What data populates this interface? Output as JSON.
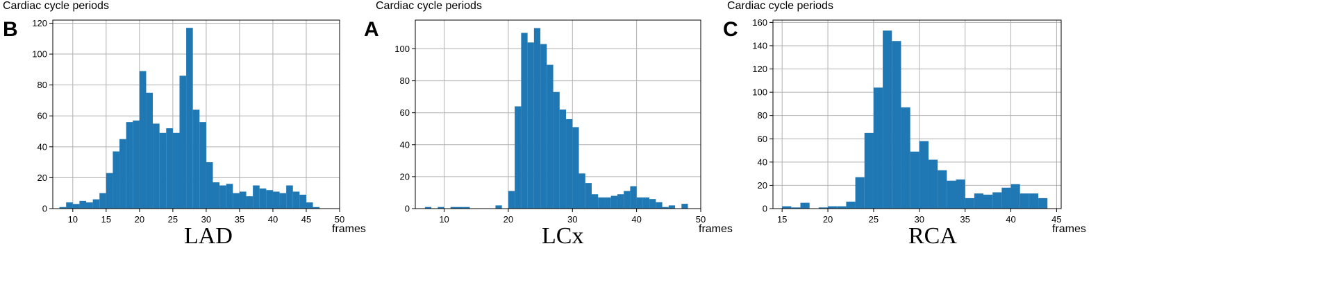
{
  "colors": {
    "bar": "#1f77b4",
    "grid": "#b0b0b0",
    "axis": "#000000"
  },
  "chart_data": [
    {
      "type": "bar",
      "panel_letter": "B",
      "title": "Cardiac cycle periods",
      "xlabel": "frames",
      "series_name": "LAD",
      "xlim": [
        7,
        50
      ],
      "ylim": [
        0,
        122
      ],
      "xticks": [
        10,
        15,
        20,
        25,
        30,
        35,
        40,
        45,
        50
      ],
      "yticks": [
        0,
        20,
        40,
        60,
        80,
        100,
        120
      ],
      "grid": true,
      "bins": [
        {
          "x0": 8,
          "x1": 9,
          "y": 1
        },
        {
          "x0": 9,
          "x1": 10,
          "y": 4
        },
        {
          "x0": 10,
          "x1": 11,
          "y": 3
        },
        {
          "x0": 11,
          "x1": 12,
          "y": 5
        },
        {
          "x0": 12,
          "x1": 13,
          "y": 4
        },
        {
          "x0": 13,
          "x1": 14,
          "y": 6
        },
        {
          "x0": 14,
          "x1": 15,
          "y": 10
        },
        {
          "x0": 15,
          "x1": 16,
          "y": 23
        },
        {
          "x0": 16,
          "x1": 17,
          "y": 37
        },
        {
          "x0": 17,
          "x1": 18,
          "y": 45
        },
        {
          "x0": 18,
          "x1": 19,
          "y": 56
        },
        {
          "x0": 19,
          "x1": 20,
          "y": 57
        },
        {
          "x0": 20,
          "x1": 21,
          "y": 89
        },
        {
          "x0": 21,
          "x1": 22,
          "y": 75
        },
        {
          "x0": 22,
          "x1": 23,
          "y": 55
        },
        {
          "x0": 23,
          "x1": 24,
          "y": 49
        },
        {
          "x0": 24,
          "x1": 25,
          "y": 52
        },
        {
          "x0": 25,
          "x1": 26,
          "y": 49
        },
        {
          "x0": 26,
          "x1": 27,
          "y": 86
        },
        {
          "x0": 27,
          "x1": 28,
          "y": 117
        },
        {
          "x0": 28,
          "x1": 29,
          "y": 64
        },
        {
          "x0": 29,
          "x1": 30,
          "y": 56
        },
        {
          "x0": 30,
          "x1": 31,
          "y": 30
        },
        {
          "x0": 31,
          "x1": 32,
          "y": 17
        },
        {
          "x0": 32,
          "x1": 33,
          "y": 15
        },
        {
          "x0": 33,
          "x1": 34,
          "y": 16
        },
        {
          "x0": 34,
          "x1": 35,
          "y": 10
        },
        {
          "x0": 35,
          "x1": 36,
          "y": 11
        },
        {
          "x0": 36,
          "x1": 37,
          "y": 8
        },
        {
          "x0": 37,
          "x1": 38,
          "y": 15
        },
        {
          "x0": 38,
          "x1": 39,
          "y": 13
        },
        {
          "x0": 39,
          "x1": 40,
          "y": 12
        },
        {
          "x0": 40,
          "x1": 41,
          "y": 11
        },
        {
          "x0": 41,
          "x1": 42,
          "y": 10
        },
        {
          "x0": 42,
          "x1": 43,
          "y": 15
        },
        {
          "x0": 43,
          "x1": 44,
          "y": 11
        },
        {
          "x0": 44,
          "x1": 45,
          "y": 9
        },
        {
          "x0": 45,
          "x1": 46,
          "y": 4
        },
        {
          "x0": 46,
          "x1": 47,
          "y": 1
        }
      ]
    },
    {
      "type": "bar",
      "panel_letter": "A",
      "title": "Cardiac cycle periods",
      "xlabel": "frames",
      "series_name": "LCx",
      "xlim": [
        5.5,
        50
      ],
      "ylim": [
        0,
        118
      ],
      "xticks": [
        10,
        20,
        30,
        40,
        50
      ],
      "yticks": [
        0,
        20,
        40,
        60,
        80,
        100
      ],
      "grid": true,
      "bins": [
        {
          "x0": 7,
          "x1": 8,
          "y": 1
        },
        {
          "x0": 9,
          "x1": 10,
          "y": 1
        },
        {
          "x0": 11,
          "x1": 12,
          "y": 1
        },
        {
          "x0": 12,
          "x1": 13,
          "y": 1
        },
        {
          "x0": 13,
          "x1": 14,
          "y": 1
        },
        {
          "x0": 18,
          "x1": 19,
          "y": 2
        },
        {
          "x0": 20,
          "x1": 21,
          "y": 11
        },
        {
          "x0": 21,
          "x1": 22,
          "y": 64
        },
        {
          "x0": 22,
          "x1": 23,
          "y": 110
        },
        {
          "x0": 23,
          "x1": 24,
          "y": 104
        },
        {
          "x0": 24,
          "x1": 25,
          "y": 113
        },
        {
          "x0": 25,
          "x1": 26,
          "y": 103
        },
        {
          "x0": 26,
          "x1": 27,
          "y": 90
        },
        {
          "x0": 27,
          "x1": 28,
          "y": 73
        },
        {
          "x0": 28,
          "x1": 29,
          "y": 62
        },
        {
          "x0": 29,
          "x1": 30,
          "y": 56
        },
        {
          "x0": 30,
          "x1": 31,
          "y": 51
        },
        {
          "x0": 31,
          "x1": 32,
          "y": 22
        },
        {
          "x0": 32,
          "x1": 33,
          "y": 16
        },
        {
          "x0": 33,
          "x1": 34,
          "y": 9
        },
        {
          "x0": 34,
          "x1": 35,
          "y": 7
        },
        {
          "x0": 35,
          "x1": 36,
          "y": 7
        },
        {
          "x0": 36,
          "x1": 37,
          "y": 8
        },
        {
          "x0": 37,
          "x1": 38,
          "y": 9
        },
        {
          "x0": 38,
          "x1": 39,
          "y": 11
        },
        {
          "x0": 39,
          "x1": 40,
          "y": 14
        },
        {
          "x0": 40,
          "x1": 41,
          "y": 7
        },
        {
          "x0": 41,
          "x1": 42,
          "y": 7
        },
        {
          "x0": 42,
          "x1": 43,
          "y": 6
        },
        {
          "x0": 43,
          "x1": 44,
          "y": 4
        },
        {
          "x0": 44,
          "x1": 45,
          "y": 1
        },
        {
          "x0": 45,
          "x1": 46,
          "y": 2
        },
        {
          "x0": 47,
          "x1": 48,
          "y": 3
        }
      ]
    },
    {
      "type": "bar",
      "panel_letter": "C",
      "title": "Cardiac cycle periods",
      "xlabel": "frames",
      "series_name": "RCA",
      "xlim": [
        14,
        45.5
      ],
      "ylim": [
        0,
        162
      ],
      "xticks": [
        15,
        20,
        25,
        30,
        35,
        40,
        45
      ],
      "yticks": [
        0,
        20,
        40,
        60,
        80,
        100,
        120,
        140,
        160
      ],
      "grid": true,
      "bins": [
        {
          "x0": 15,
          "x1": 16,
          "y": 2
        },
        {
          "x0": 16,
          "x1": 17,
          "y": 1
        },
        {
          "x0": 17,
          "x1": 18,
          "y": 5
        },
        {
          "x0": 19,
          "x1": 20,
          "y": 1
        },
        {
          "x0": 20,
          "x1": 21,
          "y": 2
        },
        {
          "x0": 21,
          "x1": 22,
          "y": 2
        },
        {
          "x0": 22,
          "x1": 23,
          "y": 6
        },
        {
          "x0": 23,
          "x1": 24,
          "y": 27
        },
        {
          "x0": 24,
          "x1": 25,
          "y": 65
        },
        {
          "x0": 25,
          "x1": 26,
          "y": 104
        },
        {
          "x0": 26,
          "x1": 27,
          "y": 153
        },
        {
          "x0": 27,
          "x1": 28,
          "y": 144
        },
        {
          "x0": 28,
          "x1": 29,
          "y": 87
        },
        {
          "x0": 29,
          "x1": 30,
          "y": 49
        },
        {
          "x0": 30,
          "x1": 31,
          "y": 58
        },
        {
          "x0": 31,
          "x1": 32,
          "y": 42
        },
        {
          "x0": 32,
          "x1": 33,
          "y": 33
        },
        {
          "x0": 33,
          "x1": 34,
          "y": 24
        },
        {
          "x0": 34,
          "x1": 35,
          "y": 25
        },
        {
          "x0": 35,
          "x1": 36,
          "y": 9
        },
        {
          "x0": 36,
          "x1": 37,
          "y": 13
        },
        {
          "x0": 37,
          "x1": 38,
          "y": 12
        },
        {
          "x0": 38,
          "x1": 39,
          "y": 14
        },
        {
          "x0": 39,
          "x1": 40,
          "y": 18
        },
        {
          "x0": 40,
          "x1": 41,
          "y": 21
        },
        {
          "x0": 41,
          "x1": 42,
          "y": 13
        },
        {
          "x0": 42,
          "x1": 43,
          "y": 13
        },
        {
          "x0": 43,
          "x1": 44,
          "y": 9
        }
      ]
    }
  ]
}
